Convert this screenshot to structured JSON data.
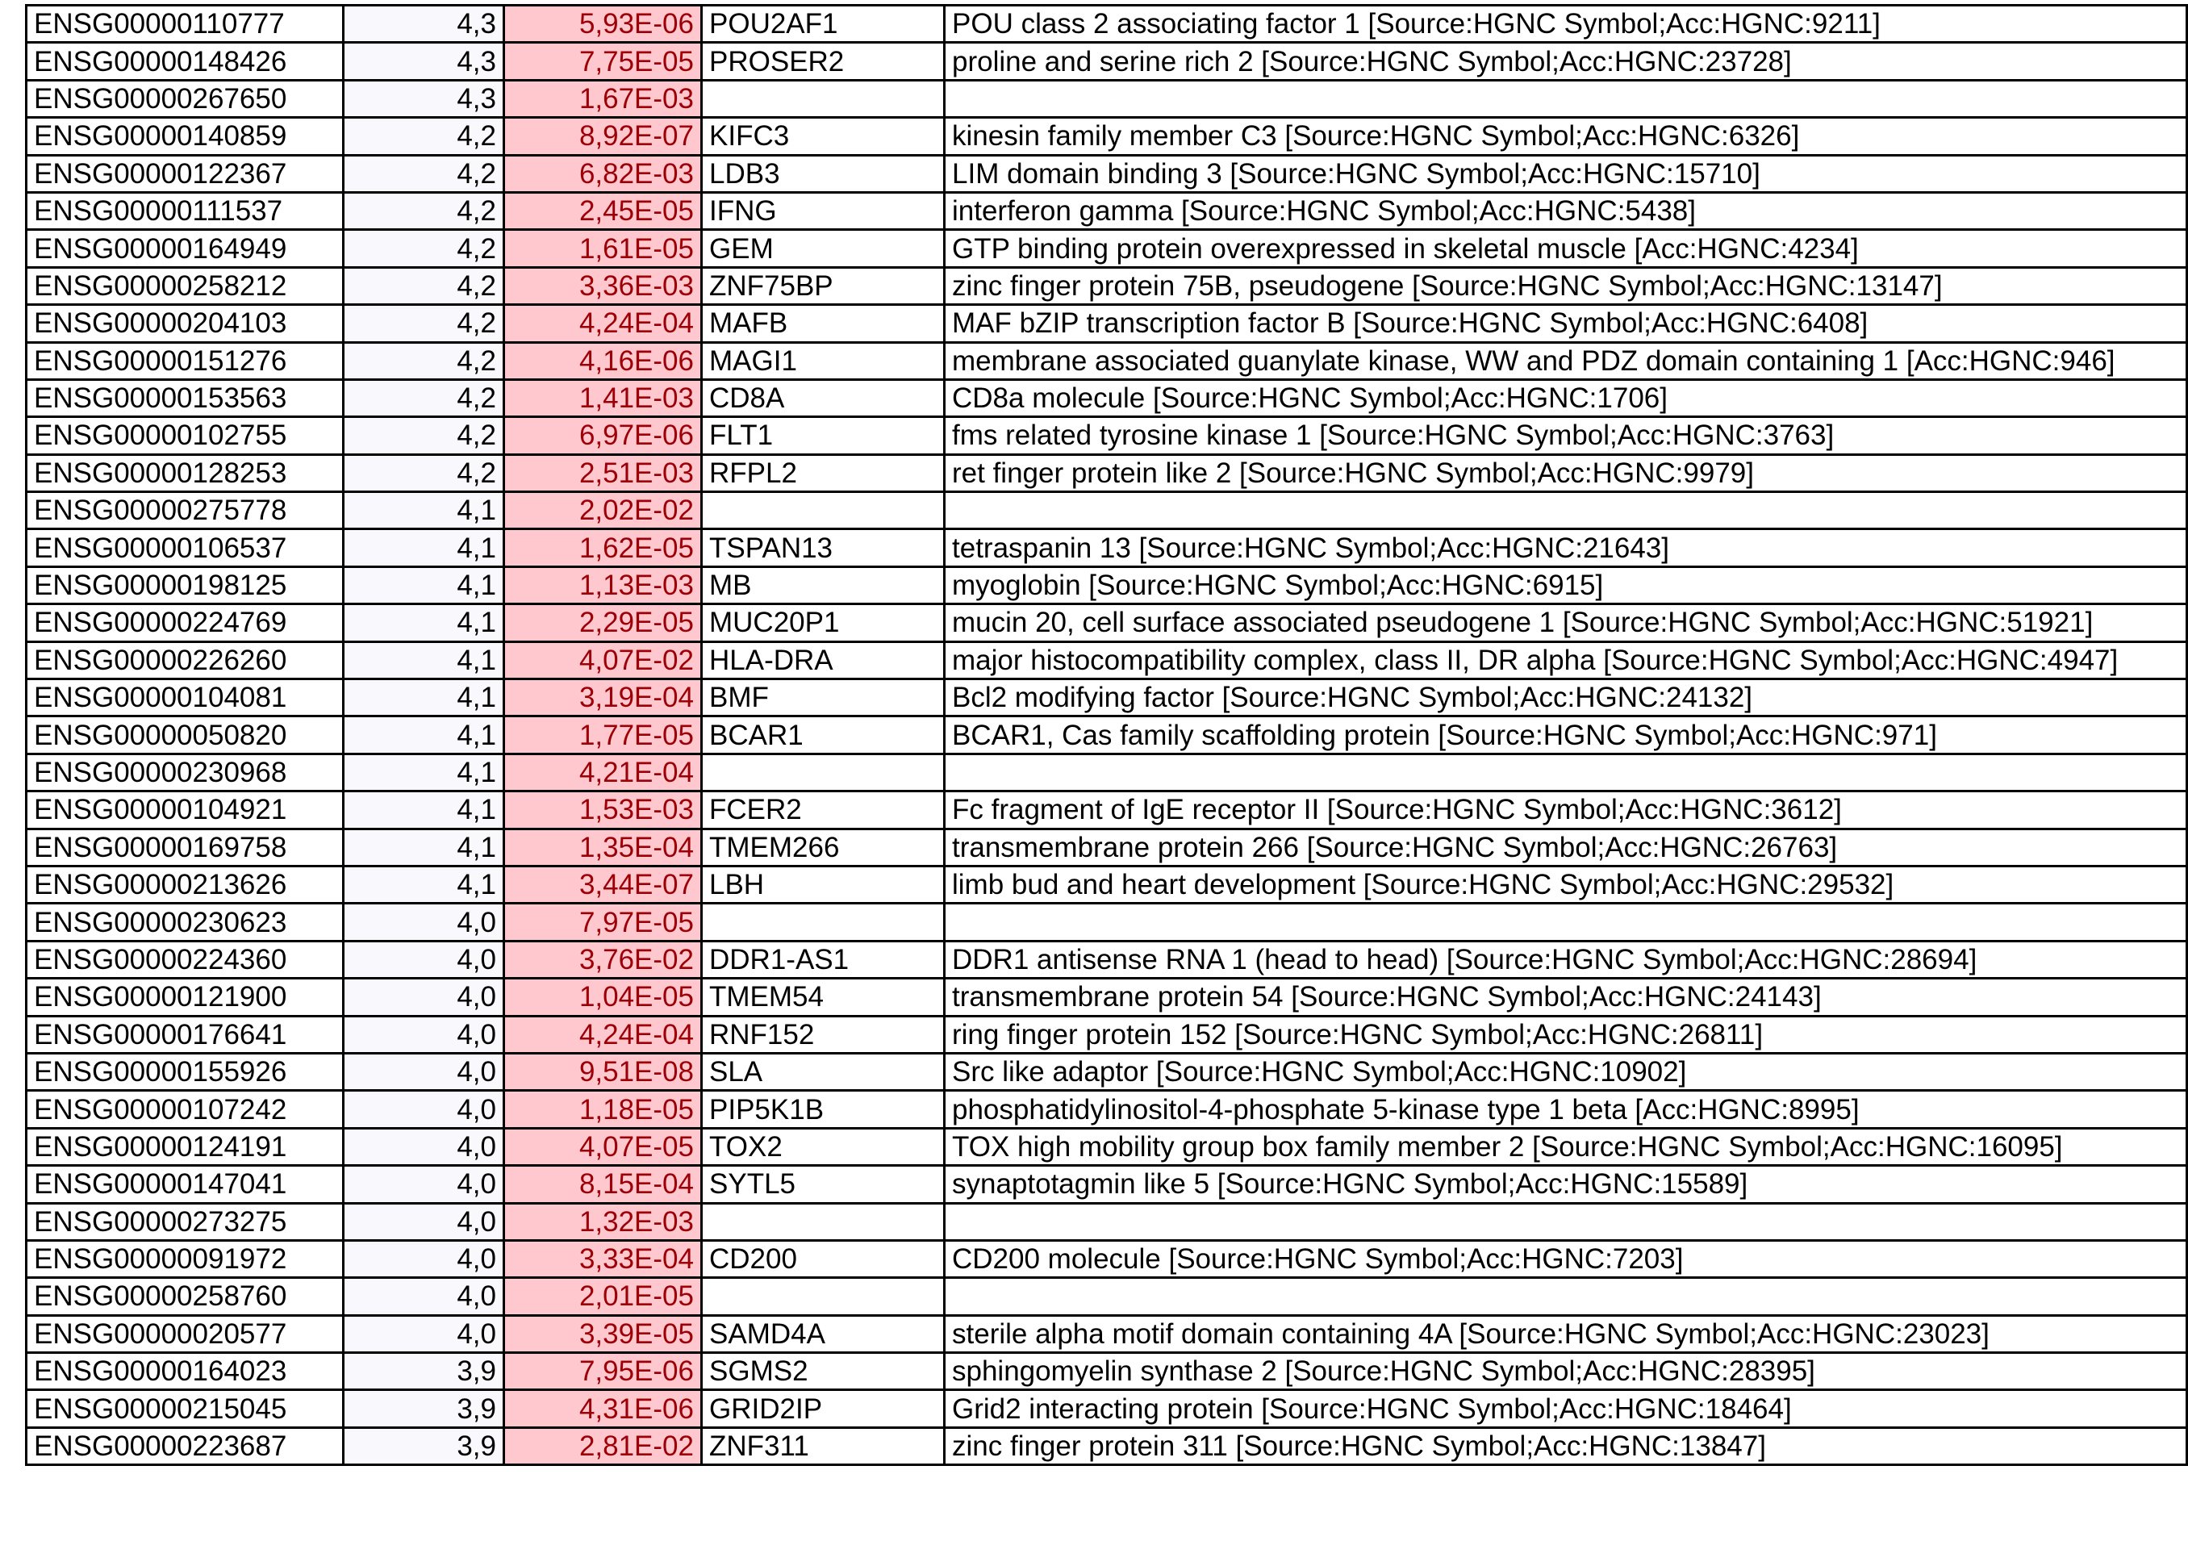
{
  "colors": {
    "pvalue_fill": "#ffc7ce",
    "pvalue_text": "#9c0006",
    "fc_fill": "#f8f8fd"
  },
  "rows": [
    [
      "ENSG00000110777",
      "4,3",
      "5,93E-06",
      "POU2AF1",
      "POU class 2 associating factor 1 [Source:HGNC Symbol;Acc:HGNC:9211]"
    ],
    [
      "ENSG00000148426",
      "4,3",
      "7,75E-05",
      "PROSER2",
      "proline and serine rich 2 [Source:HGNC Symbol;Acc:HGNC:23728]"
    ],
    [
      "ENSG00000267650",
      "4,3",
      "1,67E-03",
      "",
      ""
    ],
    [
      "ENSG00000140859",
      "4,2",
      "8,92E-07",
      "KIFC3",
      "kinesin family member C3 [Source:HGNC Symbol;Acc:HGNC:6326]"
    ],
    [
      "ENSG00000122367",
      "4,2",
      "6,82E-03",
      "LDB3",
      "LIM domain binding 3 [Source:HGNC Symbol;Acc:HGNC:15710]"
    ],
    [
      "ENSG00000111537",
      "4,2",
      "2,45E-05",
      "IFNG",
      "interferon gamma [Source:HGNC Symbol;Acc:HGNC:5438]"
    ],
    [
      "ENSG00000164949",
      "4,2",
      "1,61E-05",
      "GEM",
      "GTP binding protein overexpressed in skeletal muscle [Acc:HGNC:4234]"
    ],
    [
      "ENSG00000258212",
      "4,2",
      "3,36E-03",
      "ZNF75BP",
      "zinc finger protein 75B, pseudogene [Source:HGNC Symbol;Acc:HGNC:13147]"
    ],
    [
      "ENSG00000204103",
      "4,2",
      "4,24E-04",
      "MAFB",
      "MAF bZIP transcription factor B [Source:HGNC Symbol;Acc:HGNC:6408]"
    ],
    [
      "ENSG00000151276",
      "4,2",
      "4,16E-06",
      "MAGI1",
      "membrane associated guanylate kinase, WW and PDZ domain containing 1 [Acc:HGNC:946]"
    ],
    [
      "ENSG00000153563",
      "4,2",
      "1,41E-03",
      "CD8A",
      "CD8a molecule [Source:HGNC Symbol;Acc:HGNC:1706]"
    ],
    [
      "ENSG00000102755",
      "4,2",
      "6,97E-06",
      "FLT1",
      "fms related tyrosine kinase 1 [Source:HGNC Symbol;Acc:HGNC:3763]"
    ],
    [
      "ENSG00000128253",
      "4,2",
      "2,51E-03",
      "RFPL2",
      "ret finger protein like 2 [Source:HGNC Symbol;Acc:HGNC:9979]"
    ],
    [
      "ENSG00000275778",
      "4,1",
      "2,02E-02",
      "",
      ""
    ],
    [
      "ENSG00000106537",
      "4,1",
      "1,62E-05",
      "TSPAN13",
      "tetraspanin 13 [Source:HGNC Symbol;Acc:HGNC:21643]"
    ],
    [
      "ENSG00000198125",
      "4,1",
      "1,13E-03",
      "MB",
      "myoglobin [Source:HGNC Symbol;Acc:HGNC:6915]"
    ],
    [
      "ENSG00000224769",
      "4,1",
      "2,29E-05",
      "MUC20P1",
      "mucin 20, cell surface associated pseudogene 1 [Source:HGNC Symbol;Acc:HGNC:51921]"
    ],
    [
      "ENSG00000226260",
      "4,1",
      "4,07E-02",
      "HLA-DRA",
      "major histocompatibility complex, class II, DR alpha [Source:HGNC Symbol;Acc:HGNC:4947]"
    ],
    [
      "ENSG00000104081",
      "4,1",
      "3,19E-04",
      "BMF",
      "Bcl2 modifying factor [Source:HGNC Symbol;Acc:HGNC:24132]"
    ],
    [
      "ENSG00000050820",
      "4,1",
      "1,77E-05",
      "BCAR1",
      "BCAR1, Cas family scaffolding protein [Source:HGNC Symbol;Acc:HGNC:971]"
    ],
    [
      "ENSG00000230968",
      "4,1",
      "4,21E-04",
      "",
      ""
    ],
    [
      "ENSG00000104921",
      "4,1",
      "1,53E-03",
      "FCER2",
      "Fc fragment of IgE receptor II [Source:HGNC Symbol;Acc:HGNC:3612]"
    ],
    [
      "ENSG00000169758",
      "4,1",
      "1,35E-04",
      "TMEM266",
      "transmembrane protein 266 [Source:HGNC Symbol;Acc:HGNC:26763]"
    ],
    [
      "ENSG00000213626",
      "4,1",
      "3,44E-07",
      "LBH",
      "limb bud and heart development [Source:HGNC Symbol;Acc:HGNC:29532]"
    ],
    [
      "ENSG00000230623",
      "4,0",
      "7,97E-05",
      "",
      ""
    ],
    [
      "ENSG00000224360",
      "4,0",
      "3,76E-02",
      "DDR1-AS1",
      "DDR1 antisense RNA 1 (head to head) [Source:HGNC Symbol;Acc:HGNC:28694]"
    ],
    [
      "ENSG00000121900",
      "4,0",
      "1,04E-05",
      "TMEM54",
      "transmembrane protein 54 [Source:HGNC Symbol;Acc:HGNC:24143]"
    ],
    [
      "ENSG00000176641",
      "4,0",
      "4,24E-04",
      "RNF152",
      "ring finger protein 152 [Source:HGNC Symbol;Acc:HGNC:26811]"
    ],
    [
      "ENSG00000155926",
      "4,0",
      "9,51E-08",
      "SLA",
      "Src like adaptor [Source:HGNC Symbol;Acc:HGNC:10902]"
    ],
    [
      "ENSG00000107242",
      "4,0",
      "1,18E-05",
      "PIP5K1B",
      "phosphatidylinositol-4-phosphate 5-kinase type 1 beta [Acc:HGNC:8995]"
    ],
    [
      "ENSG00000124191",
      "4,0",
      "4,07E-05",
      "TOX2",
      "TOX high mobility group box family member 2 [Source:HGNC Symbol;Acc:HGNC:16095]"
    ],
    [
      "ENSG00000147041",
      "4,0",
      "8,15E-04",
      "SYTL5",
      "synaptotagmin like 5 [Source:HGNC Symbol;Acc:HGNC:15589]"
    ],
    [
      "ENSG00000273275",
      "4,0",
      "1,32E-03",
      "",
      ""
    ],
    [
      "ENSG00000091972",
      "4,0",
      "3,33E-04",
      "CD200",
      "CD200 molecule [Source:HGNC Symbol;Acc:HGNC:7203]"
    ],
    [
      "ENSG00000258760",
      "4,0",
      "2,01E-05",
      "",
      ""
    ],
    [
      "ENSG00000020577",
      "4,0",
      "3,39E-05",
      "SAMD4A",
      "sterile alpha motif domain containing 4A [Source:HGNC Symbol;Acc:HGNC:23023]"
    ],
    [
      "ENSG00000164023",
      "3,9",
      "7,95E-06",
      "SGMS2",
      "sphingomyelin synthase 2 [Source:HGNC Symbol;Acc:HGNC:28395]"
    ],
    [
      "ENSG00000215045",
      "3,9",
      "4,31E-06",
      "GRID2IP",
      "Grid2 interacting protein [Source:HGNC Symbol;Acc:HGNC:18464]"
    ],
    [
      "ENSG00000223687",
      "3,9",
      "2,81E-02",
      "ZNF311",
      "zinc finger protein 311 [Source:HGNC Symbol;Acc:HGNC:13847]"
    ]
  ]
}
